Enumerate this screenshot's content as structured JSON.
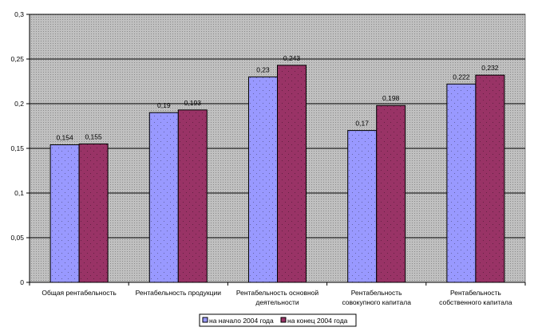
{
  "chart_data": {
    "type": "bar",
    "title": "",
    "xlabel": "",
    "ylabel": "",
    "ylim": [
      0,
      0.3
    ],
    "yticks": [
      0,
      0.05,
      0.1,
      0.15,
      0.2,
      0.25,
      0.3
    ],
    "ytick_labels": [
      "0",
      "0,05",
      "0,1",
      "0,15",
      "0,2",
      "0,25",
      "0,3"
    ],
    "grid": true,
    "legend_position": "bottom",
    "categories": [
      [
        "Общая рентабельность"
      ],
      [
        "Рентабельность продукции"
      ],
      [
        "Рентабельность основной",
        "деятельности"
      ],
      [
        "Рентабельность",
        "совокупного капитала"
      ],
      [
        "Рентабельность",
        "собственного капитала"
      ]
    ],
    "series": [
      {
        "name": "на начало 2004 года",
        "color": "#9999FF",
        "values": [
          0.154,
          0.19,
          0.23,
          0.17,
          0.222
        ],
        "labels": [
          "0,154",
          "0,19",
          "0,23",
          "0,17",
          "0,222"
        ]
      },
      {
        "name": "на конец 2004 года",
        "color": "#993366",
        "values": [
          0.155,
          0.193,
          0.243,
          0.198,
          0.232
        ],
        "labels": [
          "0,155",
          "0,193",
          "0,243",
          "0,198",
          "0,232"
        ]
      }
    ]
  }
}
